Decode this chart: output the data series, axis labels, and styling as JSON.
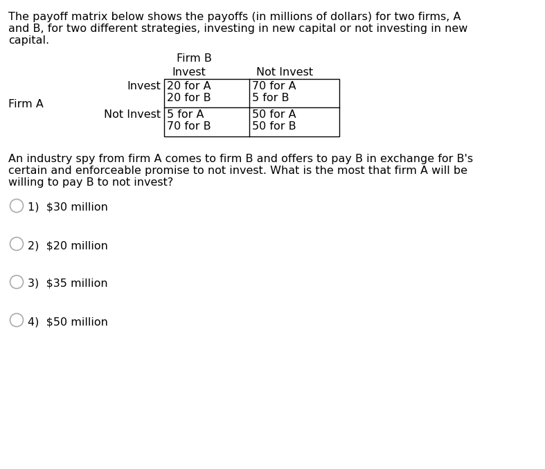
{
  "background_color": "#ffffff",
  "intro_line1": "The payoff matrix below shows the payoffs (in millions of dollars) for two firms, A",
  "intro_line2": "and B, for two different strategies, investing in new capital or not investing in new",
  "intro_line3": "capital.",
  "firm_b_label": "Firm B",
  "firm_a_label": "Firm A",
  "col_header1": "Invest",
  "col_header2": "Not Invest",
  "row_header1": "Invest",
  "row_header2": "Not Invest",
  "cell_r1c1_line1": "20 for A",
  "cell_r1c1_line2": "20 for B",
  "cell_r1c2_line1": "70 for A",
  "cell_r1c2_line2": "5 for B",
  "cell_r2c1_line1": "5 for A",
  "cell_r2c1_line2": "70 for B",
  "cell_r2c2_line1": "50 for A",
  "cell_r2c2_line2": "50 for B",
  "question_line1": "An industry spy from firm A comes to firm B and offers to pay B in exchange for B's",
  "question_line2": "certain and enforceable promise to not invest. What is the most that firm A will be",
  "question_line3": "willing to pay B to not invest?",
  "choices": [
    "1)  $30 million",
    "2)  $20 million",
    "3)  $35 million",
    "4)  $50 million"
  ],
  "circle_color": "#aaaaaa",
  "text_color": "#000000",
  "font_size": 11.5,
  "font_family": "DejaVu Sans"
}
